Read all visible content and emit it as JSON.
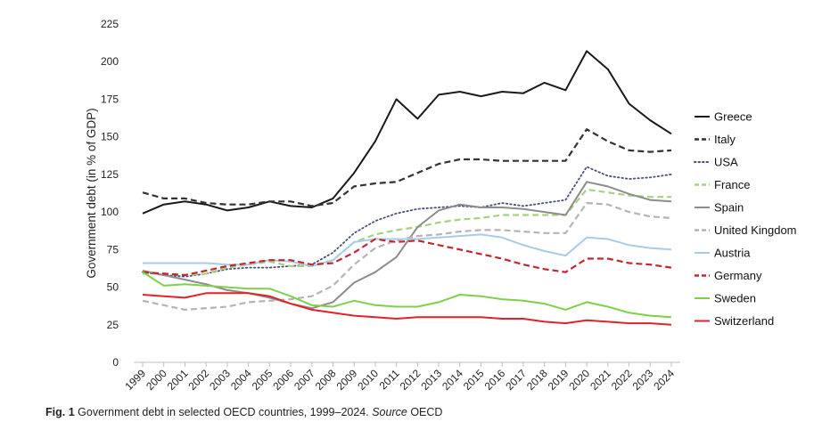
{
  "chart_data": {
    "type": "line",
    "title": "",
    "xlabel": "",
    "ylabel": "Government debt (in % of GDP)",
    "ylim": [
      0,
      225
    ],
    "yticks": [
      0,
      25,
      50,
      75,
      100,
      125,
      150,
      175,
      200,
      225
    ],
    "grid": false,
    "legend_position": "right",
    "x": [
      "1999",
      "2000",
      "2001",
      "2002",
      "2003",
      "2004",
      "2005",
      "2006",
      "2007",
      "2008",
      "2009",
      "2010",
      "2011",
      "2012",
      "2013",
      "2014",
      "2015",
      "2016",
      "2017",
      "2018",
      "2019",
      "2020",
      "2021",
      "2022",
      "2023",
      "2024"
    ],
    "series": [
      {
        "name": "Greece",
        "color": "#1a1a1a",
        "style": "solid",
        "values": [
          99,
          105,
          107,
          105,
          101,
          103,
          107,
          104,
          103,
          109,
          126,
          147,
          175,
          162,
          178,
          180,
          177,
          180,
          179,
          186,
          181,
          207,
          195,
          172,
          161,
          152
        ]
      },
      {
        "name": "Italy",
        "color": "#333333",
        "style": "dashed",
        "values": [
          113,
          109,
          109,
          106,
          105,
          105,
          107,
          107,
          104,
          106,
          117,
          119,
          120,
          126,
          132,
          135,
          135,
          134,
          134,
          134,
          134,
          155,
          147,
          141,
          140,
          141
        ]
      },
      {
        "name": "USA",
        "color": "#46507a",
        "style": "dotted",
        "values": [
          60,
          58,
          57,
          59,
          62,
          63,
          63,
          64,
          65,
          73,
          86,
          94,
          99,
          102,
          103,
          104,
          103,
          106,
          104,
          106,
          108,
          130,
          124,
          122,
          123,
          125
        ]
      },
      {
        "name": "France",
        "color": "#a5d27e",
        "style": "dashed",
        "values": [
          59,
          59,
          58,
          59,
          63,
          65,
          67,
          64,
          64,
          68,
          80,
          85,
          88,
          90,
          93,
          95,
          96,
          98,
          98,
          98,
          98,
          115,
          113,
          111,
          110,
          110
        ]
      },
      {
        "name": "Spain",
        "color": "#8c8c8c",
        "style": "solid",
        "values": [
          61,
          58,
          55,
          52,
          48,
          46,
          43,
          39,
          36,
          40,
          53,
          60,
          70,
          90,
          101,
          105,
          103,
          103,
          102,
          100,
          98,
          120,
          117,
          112,
          108,
          107
        ]
      },
      {
        "name": "United Kingdom",
        "color": "#b4b4b4",
        "style": "dashed",
        "values": [
          41,
          38,
          35,
          36,
          37,
          40,
          41,
          42,
          44,
          51,
          65,
          76,
          81,
          84,
          85,
          87,
          88,
          88,
          87,
          86,
          86,
          106,
          105,
          100,
          97,
          96
        ]
      },
      {
        "name": "Austria",
        "color": "#a9cbe5",
        "style": "solid",
        "values": [
          66,
          66,
          66,
          66,
          65,
          65,
          68,
          67,
          64,
          68,
          80,
          82,
          82,
          82,
          83,
          84,
          85,
          83,
          78,
          74,
          71,
          83,
          82,
          78,
          76,
          75
        ]
      },
      {
        "name": "Germany",
        "color": "#c1272d",
        "style": "dashed",
        "values": [
          60,
          59,
          58,
          61,
          64,
          66,
          68,
          68,
          65,
          66,
          73,
          82,
          80,
          81,
          78,
          75,
          72,
          69,
          65,
          62,
          60,
          69,
          69,
          66,
          65,
          63
        ]
      },
      {
        "name": "Sweden",
        "color": "#7ed04a",
        "style": "solid",
        "values": [
          60,
          51,
          52,
          51,
          50,
          49,
          49,
          44,
          38,
          37,
          41,
          38,
          37,
          37,
          40,
          45,
          44,
          42,
          41,
          39,
          35,
          40,
          37,
          33,
          31,
          30
        ]
      },
      {
        "name": "Switzerland",
        "color": "#e32126",
        "style": "solid",
        "values": [
          45,
          44,
          43,
          46,
          46,
          46,
          44,
          39,
          35,
          33,
          31,
          30,
          29,
          30,
          30,
          30,
          30,
          29,
          29,
          27,
          26,
          28,
          27,
          26,
          26,
          25
        ]
      }
    ]
  },
  "caption": {
    "figure_label": "Fig. 1",
    "text": "Government debt in selected OECD countries, 1999–2024.",
    "source_label": "Source",
    "source": "OECD"
  }
}
